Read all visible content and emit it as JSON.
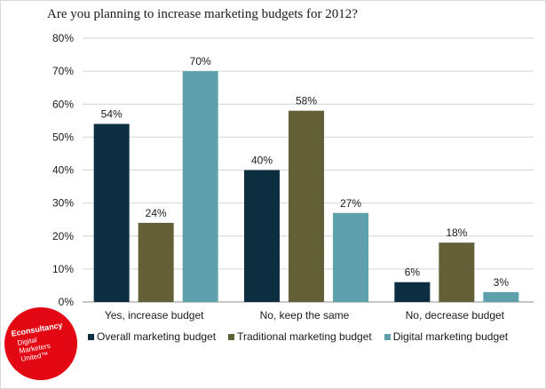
{
  "chart_data": {
    "type": "bar",
    "title": "Are you planning to increase marketing budgets for 2012?",
    "categories": [
      "Yes, increase budget",
      "No, keep the same",
      "No, decrease budget"
    ],
    "series": [
      {
        "name": "Overall marketing budget",
        "values": [
          54,
          40,
          6
        ],
        "color": "#0d2d40"
      },
      {
        "name": "Traditional marketing budget",
        "values": [
          24,
          58,
          18
        ],
        "color": "#636037"
      },
      {
        "name": "Digital marketing budget",
        "values": [
          70,
          27,
          3
        ],
        "color": "#5ea0ab"
      }
    ],
    "value_suffix": "%",
    "ylim": [
      0,
      80
    ],
    "yticks": [
      0,
      10,
      20,
      30,
      40,
      50,
      60,
      70,
      80
    ],
    "ytick_labels": [
      "0%",
      "10%",
      "20%",
      "30%",
      "40%",
      "50%",
      "60%",
      "70%",
      "80%"
    ],
    "grid": true,
    "legend_position": "bottom",
    "xlabel": "",
    "ylabel": ""
  },
  "logo": {
    "brand": "Econsultancy",
    "tagline": [
      "Digital",
      "Marketers",
      "United™"
    ],
    "color": "#e30613"
  }
}
